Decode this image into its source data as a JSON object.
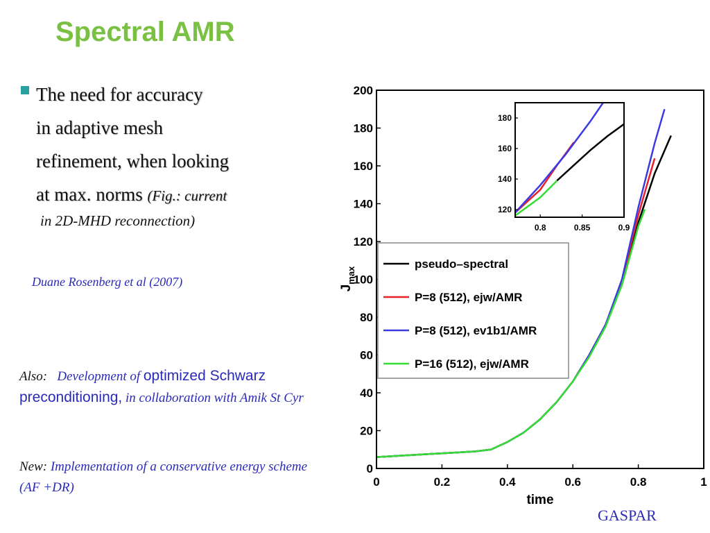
{
  "slide": {
    "title": "Spectral AMR",
    "bullet": {
      "line1": "The need for accuracy",
      "line2": "in adaptive mesh",
      "line3": "refinement, when looking",
      "line4": "at max. norms",
      "fig_note": "(Fig.: current",
      "fig_note2": "in 2D-MHD reconnection)"
    },
    "citation": "Duane Rosenberg et al (2007)",
    "also": {
      "label": "Also:",
      "text1": "Development of",
      "text2": "optimized Schwarz preconditioning,",
      "text3": "in collaboration with Amik St Cyr"
    },
    "new": {
      "label": "New:",
      "text": "Implementation of  a conservative energy scheme (AF +DR)"
    },
    "footer": "GASPAR"
  },
  "chart_data": {
    "type": "line",
    "xlabel": "time",
    "ylabel": "J",
    "ylabel_sub": "max",
    "xlim": [
      0,
      1
    ],
    "ylim": [
      0,
      200
    ],
    "xticks": [
      "0",
      "0.2",
      "0.4",
      "0.6",
      "0.8",
      "1"
    ],
    "yticks": [
      "0",
      "20",
      "40",
      "60",
      "80",
      "100",
      "120",
      "140",
      "160",
      "180",
      "200"
    ],
    "legend_position": "center-left",
    "series": [
      {
        "name": "pseudo–spectral",
        "color": "#000000",
        "x": [
          0,
          0.1,
          0.2,
          0.3,
          0.35,
          0.4,
          0.45,
          0.5,
          0.55,
          0.6,
          0.65,
          0.7,
          0.75,
          0.8,
          0.85,
          0.9
        ],
        "y": [
          6,
          7,
          8,
          9,
          10,
          14,
          19,
          26,
          35,
          46,
          60,
          76,
          98,
          130,
          156,
          176
        ]
      },
      {
        "name": "P=8 (512), ejw/AMR",
        "color": "#e8202a",
        "x": [
          0,
          0.1,
          0.2,
          0.3,
          0.35,
          0.4,
          0.45,
          0.5,
          0.55,
          0.6,
          0.65,
          0.7,
          0.75,
          0.8,
          0.85
        ],
        "y": [
          6,
          7,
          8,
          9,
          10,
          14,
          19,
          26,
          35,
          46,
          60,
          76,
          99,
          134,
          164
        ]
      },
      {
        "name": "P=8 (512), ev1b1/AMR",
        "color": "#3a3ae0",
        "x": [
          0,
          0.1,
          0.2,
          0.3,
          0.35,
          0.4,
          0.45,
          0.5,
          0.55,
          0.6,
          0.65,
          0.7,
          0.75,
          0.8,
          0.85,
          0.88
        ],
        "y": [
          6,
          7,
          8,
          9,
          10,
          14,
          19,
          26,
          35,
          46,
          60,
          76,
          100,
          138,
          172,
          190
        ]
      },
      {
        "name": "P=16 (512), ejw/AMR",
        "color": "#33dd33",
        "x": [
          0,
          0.1,
          0.2,
          0.3,
          0.35,
          0.4,
          0.45,
          0.5,
          0.55,
          0.6,
          0.65,
          0.7,
          0.75,
          0.8,
          0.82
        ],
        "y": [
          6,
          7,
          8,
          9,
          10,
          14,
          19,
          26,
          35,
          46,
          59,
          75,
          97,
          128,
          137
        ]
      }
    ],
    "inset": {
      "xlim": [
        0.77,
        0.9
      ],
      "ylim": [
        115,
        190
      ],
      "xticks": [
        "0.8",
        "0.85",
        "0.9"
      ],
      "yticks": [
        "120",
        "140",
        "160",
        "180"
      ],
      "series": [
        {
          "color": "#000000",
          "x": [
            0.82,
            0.84,
            0.86,
            0.88,
            0.9
          ],
          "y": [
            139,
            149,
            159,
            168,
            176
          ]
        },
        {
          "color": "#e8202a",
          "x": [
            0.77,
            0.8,
            0.82,
            0.84
          ],
          "y": [
            118,
            133,
            149,
            164
          ]
        },
        {
          "color": "#3a3ae0",
          "x": [
            0.77,
            0.8,
            0.83,
            0.86,
            0.875
          ],
          "y": [
            118,
            136,
            156,
            178,
            190
          ]
        },
        {
          "color": "#33dd33",
          "x": [
            0.77,
            0.8,
            0.82
          ],
          "y": [
            116,
            128,
            139
          ]
        }
      ]
    }
  }
}
